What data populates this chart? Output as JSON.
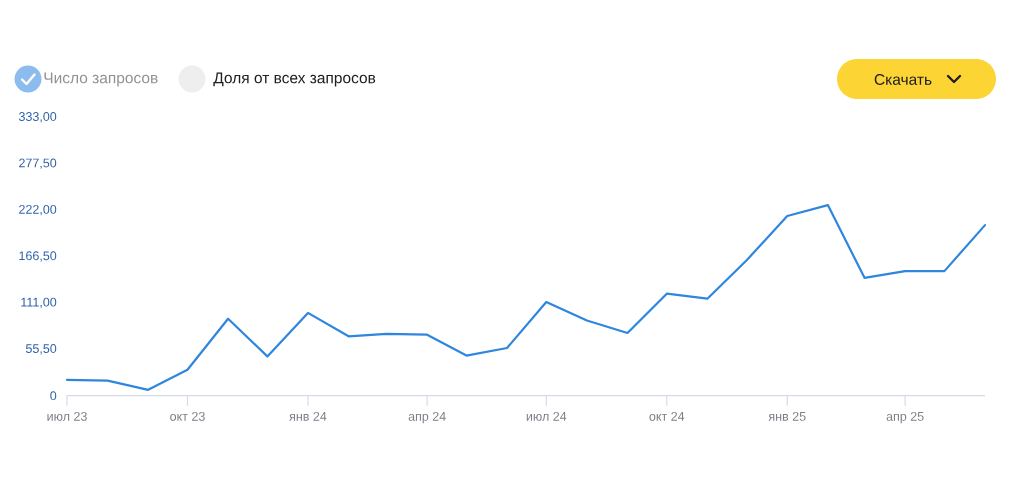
{
  "chart_data": {
    "type": "line",
    "x": [
      "2023-07",
      "2023-08",
      "2023-09",
      "2023-10",
      "2023-11",
      "2023-12",
      "2024-01",
      "2024-02",
      "2024-03",
      "2024-04",
      "2024-05",
      "2024-06",
      "2024-07",
      "2024-08",
      "2024-09",
      "2024-10",
      "2024-11",
      "2024-12",
      "2025-01",
      "2025-02",
      "2025-03",
      "2025-04",
      "2025-05",
      "2025-06"
    ],
    "series": [
      {
        "name": "Число запросов",
        "color": "#2e86de",
        "values": [
          19,
          18,
          7,
          31,
          92,
          47,
          99,
          71,
          74,
          73,
          48,
          57,
          112,
          90,
          75,
          122,
          116,
          162,
          215,
          228,
          141,
          149,
          149,
          204
        ]
      }
    ],
    "xlim": [
      "2023-07",
      "2025-06"
    ],
    "xticks": [
      {
        "value": "2023-07",
        "label": "июл 23"
      },
      {
        "value": "2023-10",
        "label": "окт 23"
      },
      {
        "value": "2024-01",
        "label": "янв 24"
      },
      {
        "value": "2024-04",
        "label": "апр 24"
      },
      {
        "value": "2024-07",
        "label": "июл 24"
      },
      {
        "value": "2024-10",
        "label": "окт 24"
      },
      {
        "value": "2025-01",
        "label": "янв 25"
      },
      {
        "value": "2025-04",
        "label": "апр 25"
      }
    ],
    "ylim": [
      0,
      333
    ],
    "yticks": [
      0,
      {
        "value": 55.5,
        "label": "55,50"
      },
      {
        "value": 111,
        "label": "111,00"
      },
      {
        "value": 166.5,
        "label": "166,50"
      },
      {
        "value": 222,
        "label": "222,00"
      },
      {
        "value": 277.5,
        "label": "277,50"
      },
      {
        "value": 333,
        "label": "333,00"
      }
    ],
    "legend": "top left",
    "annotations": [
      "Доля от всех запросов",
      "Скачать"
    ]
  }
}
